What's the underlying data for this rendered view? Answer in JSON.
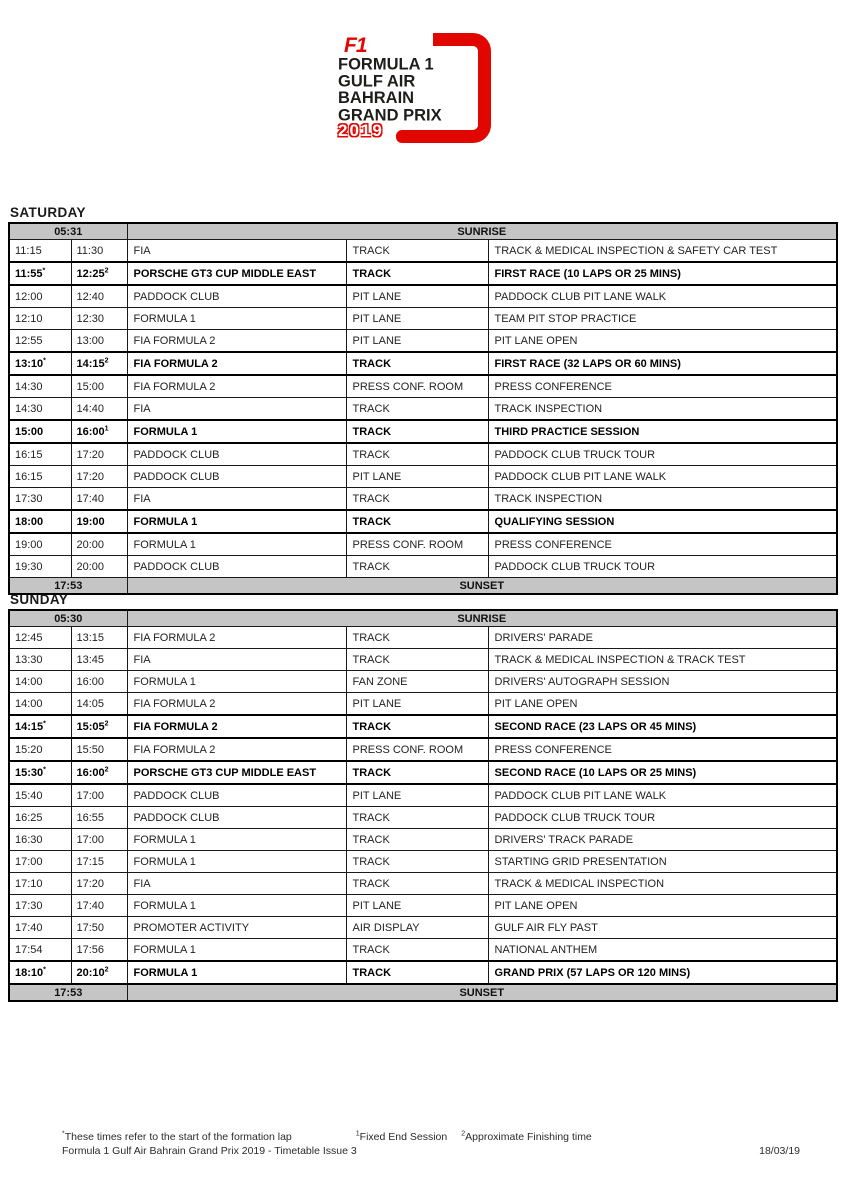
{
  "logo": {
    "f1_mark": "F1",
    "line1": "FORMULA 1",
    "line2": "GULF AIR",
    "line3": "BAHRAIN",
    "line4": "GRAND PRIX",
    "year": "2019",
    "red": "#e10600",
    "black": "#1d1d1b"
  },
  "days": [
    {
      "title": "SATURDAY",
      "sunrise_time": "05:31",
      "sunrise_label": "SUNRISE",
      "sunset_time": "17:53",
      "sunset_label": "SUNSET",
      "rows": [
        {
          "start": "11:15",
          "start_note": "",
          "end": "11:30",
          "end_note": "",
          "group": "FIA",
          "location": "TRACK",
          "description": "TRACK & MEDICAL INSPECTION & SAFETY CAR TEST",
          "bold": false
        },
        {
          "start": "11:55",
          "start_note": "*",
          "end": "12:25",
          "end_note": "2",
          "group": "PORSCHE GT3 CUP MIDDLE EAST",
          "location": "TRACK",
          "description": "FIRST RACE (10 LAPS OR 25 MINS)",
          "bold": true
        },
        {
          "start": "12:00",
          "start_note": "",
          "end": "12:40",
          "end_note": "",
          "group": "PADDOCK CLUB",
          "location": "PIT LANE",
          "description": "PADDOCK CLUB PIT LANE WALK",
          "bold": false
        },
        {
          "start": "12:10",
          "start_note": "",
          "end": "12:30",
          "end_note": "",
          "group": "FORMULA 1",
          "location": "PIT LANE",
          "description": "TEAM PIT STOP PRACTICE",
          "bold": false
        },
        {
          "start": "12:55",
          "start_note": "",
          "end": "13:00",
          "end_note": "",
          "group": "FIA FORMULA 2",
          "location": "PIT LANE",
          "description": "PIT LANE OPEN",
          "bold": false
        },
        {
          "start": "13:10",
          "start_note": "*",
          "end": "14:15",
          "end_note": "2",
          "group": "FIA FORMULA 2",
          "location": "TRACK",
          "description": "FIRST RACE (32 LAPS OR 60 MINS)",
          "bold": true
        },
        {
          "start": "14:30",
          "start_note": "",
          "end": "15:00",
          "end_note": "",
          "group": "FIA FORMULA 2",
          "location": "PRESS CONF. ROOM",
          "description": "PRESS CONFERENCE",
          "bold": false
        },
        {
          "start": "14:30",
          "start_note": "",
          "end": "14:40",
          "end_note": "",
          "group": "FIA",
          "location": "TRACK",
          "description": "TRACK INSPECTION",
          "bold": false
        },
        {
          "start": "15:00",
          "start_note": "",
          "end": "16:00",
          "end_note": "1",
          "group": "FORMULA 1",
          "location": "TRACK",
          "description": "THIRD PRACTICE SESSION",
          "bold": true
        },
        {
          "start": "16:15",
          "start_note": "",
          "end": "17:20",
          "end_note": "",
          "group": "PADDOCK CLUB",
          "location": "TRACK",
          "description": "PADDOCK CLUB TRUCK TOUR",
          "bold": false
        },
        {
          "start": "16:15",
          "start_note": "",
          "end": "17:20",
          "end_note": "",
          "group": "PADDOCK CLUB",
          "location": "PIT LANE",
          "description": "PADDOCK CLUB PIT LANE WALK",
          "bold": false
        },
        {
          "start": "17:30",
          "start_note": "",
          "end": "17:40",
          "end_note": "",
          "group": "FIA",
          "location": "TRACK",
          "description": "TRACK INSPECTION",
          "bold": false
        },
        {
          "start": "18:00",
          "start_note": "",
          "end": "19:00",
          "end_note": "",
          "group": "FORMULA 1",
          "location": "TRACK",
          "description": "QUALIFYING SESSION",
          "bold": true
        },
        {
          "start": "19:00",
          "start_note": "",
          "end": "20:00",
          "end_note": "",
          "group": "FORMULA 1",
          "location": "PRESS CONF. ROOM",
          "description": "PRESS CONFERENCE",
          "bold": false
        },
        {
          "start": "19:30",
          "start_note": "",
          "end": "20:00",
          "end_note": "",
          "group": "PADDOCK CLUB",
          "location": "TRACK",
          "description": "PADDOCK CLUB TRUCK TOUR",
          "bold": false
        }
      ]
    },
    {
      "title": "SUNDAY",
      "sunrise_time": "05:30",
      "sunrise_label": "SUNRISE",
      "sunset_time": "17:53",
      "sunset_label": "SUNSET",
      "rows": [
        {
          "start": "12:45",
          "start_note": "",
          "end": "13:15",
          "end_note": "",
          "group": "FIA FORMULA 2",
          "location": "TRACK",
          "description": "DRIVERS' PARADE",
          "bold": false
        },
        {
          "start": "13:30",
          "start_note": "",
          "end": "13:45",
          "end_note": "",
          "group": "FIA",
          "location": "TRACK",
          "description": "TRACK & MEDICAL INSPECTION & TRACK TEST",
          "bold": false
        },
        {
          "start": "14:00",
          "start_note": "",
          "end": "16:00",
          "end_note": "",
          "group": "FORMULA 1",
          "location": "FAN ZONE",
          "description": "DRIVERS' AUTOGRAPH SESSION",
          "bold": false
        },
        {
          "start": "14:00",
          "start_note": "",
          "end": "14:05",
          "end_note": "",
          "group": "FIA FORMULA 2",
          "location": "PIT LANE",
          "description": "PIT LANE OPEN",
          "bold": false
        },
        {
          "start": "14:15",
          "start_note": "*",
          "end": "15:05",
          "end_note": "2",
          "group": "FIA FORMULA 2",
          "location": "TRACK",
          "description": "SECOND RACE (23 LAPS OR 45 MINS)",
          "bold": true
        },
        {
          "start": "15:20",
          "start_note": "",
          "end": "15:50",
          "end_note": "",
          "group": "FIA FORMULA 2",
          "location": "PRESS CONF. ROOM",
          "description": "PRESS CONFERENCE",
          "bold": false
        },
        {
          "start": "15:30",
          "start_note": "*",
          "end": "16:00",
          "end_note": "2",
          "group": "PORSCHE GT3 CUP MIDDLE EAST",
          "location": "TRACK",
          "description": "SECOND RACE (10 LAPS OR 25 MINS)",
          "bold": true
        },
        {
          "start": "15:40",
          "start_note": "",
          "end": "17:00",
          "end_note": "",
          "group": "PADDOCK CLUB",
          "location": "PIT LANE",
          "description": "PADDOCK CLUB PIT LANE WALK",
          "bold": false
        },
        {
          "start": "16:25",
          "start_note": "",
          "end": "16:55",
          "end_note": "",
          "group": "PADDOCK CLUB",
          "location": "TRACK",
          "description": "PADDOCK CLUB TRUCK TOUR",
          "bold": false
        },
        {
          "start": "16:30",
          "start_note": "",
          "end": "17:00",
          "end_note": "",
          "group": "FORMULA 1",
          "location": "TRACK",
          "description": "DRIVERS' TRACK PARADE",
          "bold": false
        },
        {
          "start": "17:00",
          "start_note": "",
          "end": "17:15",
          "end_note": "",
          "group": "FORMULA 1",
          "location": "TRACK",
          "description": "STARTING GRID PRESENTATION",
          "bold": false
        },
        {
          "start": "17:10",
          "start_note": "",
          "end": "17:20",
          "end_note": "",
          "group": "FIA",
          "location": "TRACK",
          "description": "TRACK & MEDICAL INSPECTION",
          "bold": false
        },
        {
          "start": "17:30",
          "start_note": "",
          "end": "17:40",
          "end_note": "",
          "group": "FORMULA 1",
          "location": "PIT LANE",
          "description": "PIT LANE OPEN",
          "bold": false
        },
        {
          "start": "17:40",
          "start_note": "",
          "end": "17:50",
          "end_note": "",
          "group": "PROMOTER ACTIVITY",
          "location": "AIR DISPLAY",
          "description": "GULF AIR FLY PAST",
          "bold": false
        },
        {
          "start": "17:54",
          "start_note": "",
          "end": "17:56",
          "end_note": "",
          "group": "FORMULA 1",
          "location": "TRACK",
          "description": "NATIONAL ANTHEM",
          "bold": false
        },
        {
          "start": "18:10",
          "start_note": "*",
          "end": "20:10",
          "end_note": "2",
          "group": "FORMULA 1",
          "location": "TRACK",
          "description": "GRAND PRIX (57 LAPS OR 120 MINS)",
          "bold": true
        }
      ]
    }
  ],
  "footer": {
    "notes": [
      {
        "marker": "*",
        "text": "These times refer to the start of the formation lap"
      },
      {
        "marker": "1",
        "text": "Fixed End Session"
      },
      {
        "marker": "2",
        "text": "Approximate Finishing time"
      }
    ],
    "issue_line": "Formula 1 Gulf Air Bahrain Grand Prix 2019 - Timetable Issue 3",
    "date": "18/03/19"
  },
  "colors": {
    "header_gray": "#c5c5c5",
    "logo_red": "#e10600"
  }
}
